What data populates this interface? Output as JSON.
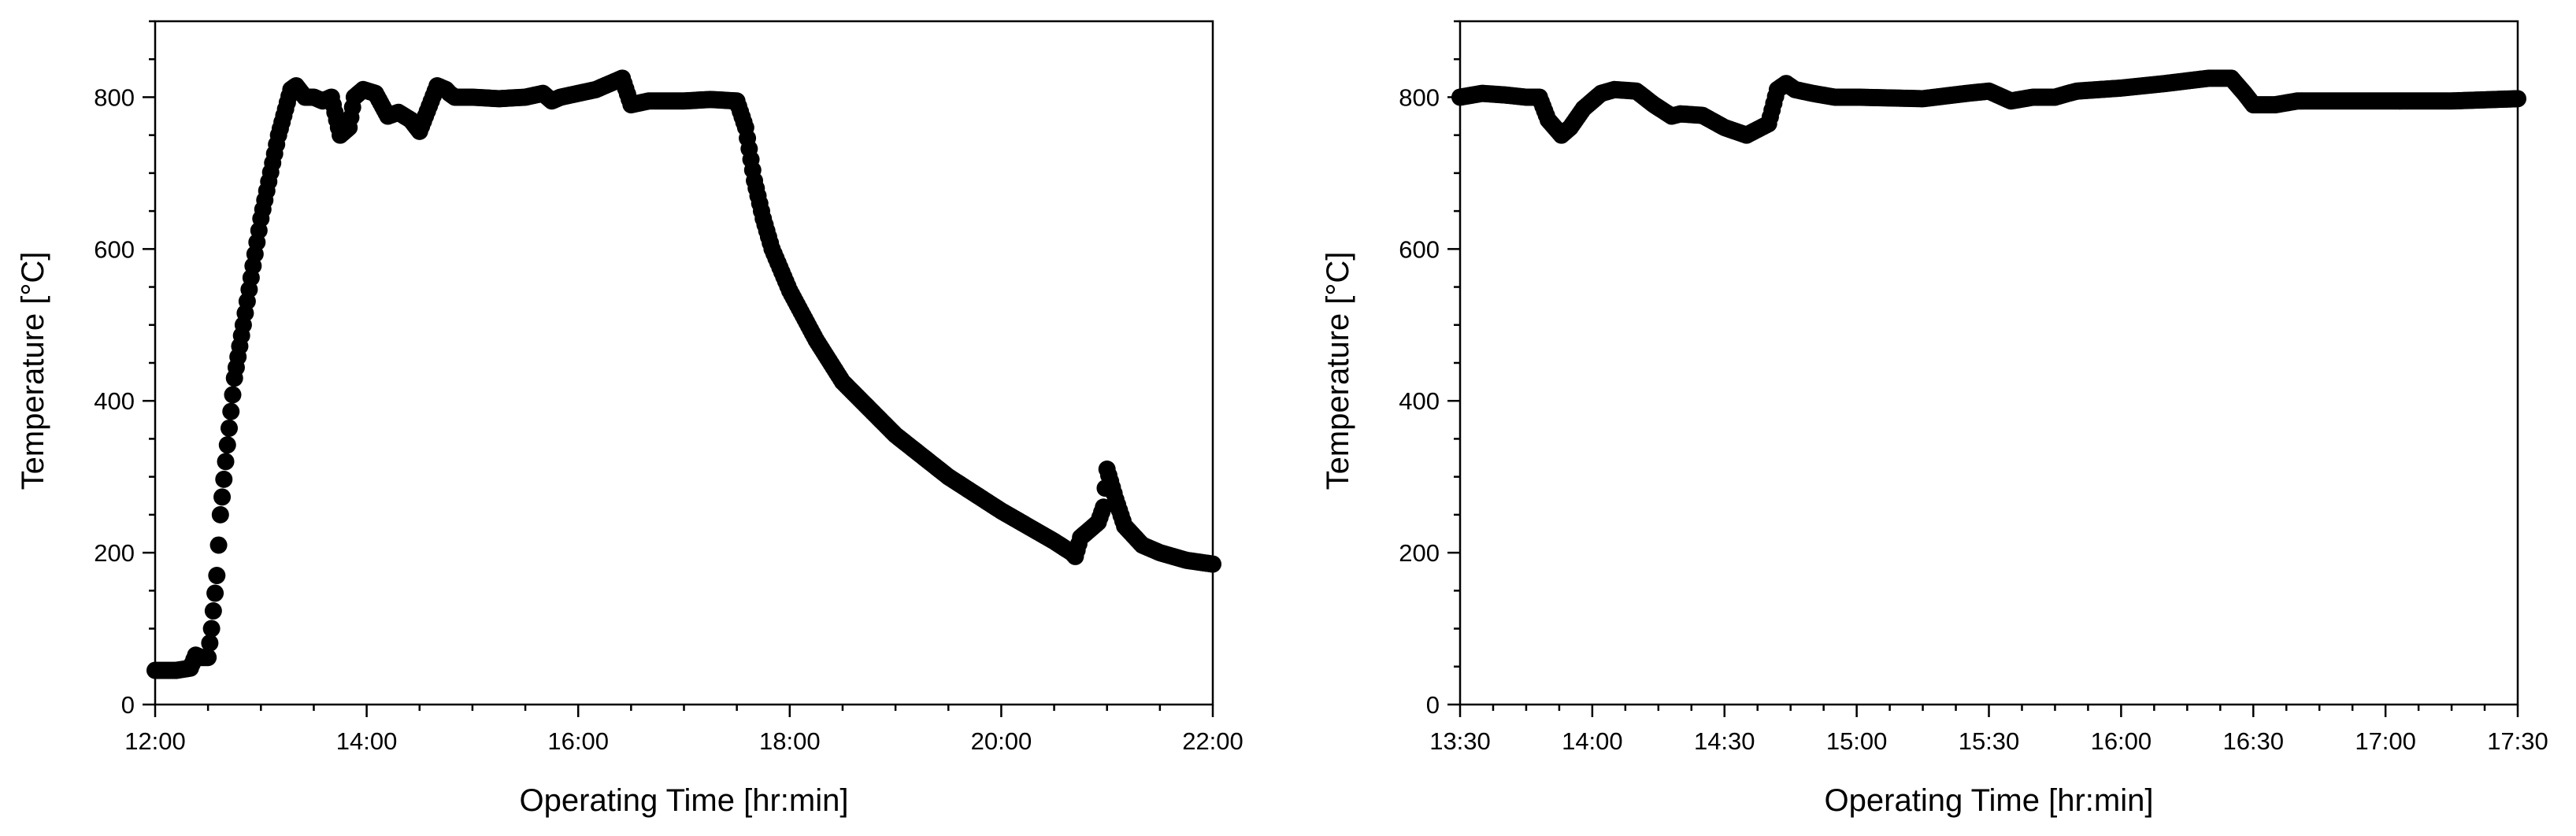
{
  "chart_data": [
    {
      "type": "scatter",
      "title": "",
      "xlabel": "Operating Time [hr:min]",
      "ylabel": "Temperature [°C]",
      "x_unit": "hr:min",
      "xlim": [
        "12:00",
        "22:00"
      ],
      "ylim": [
        0,
        900
      ],
      "x_ticks": [
        "12:00",
        "14:00",
        "16:00",
        "18:00",
        "20:00",
        "22:00"
      ],
      "y_ticks": [
        0,
        200,
        400,
        600,
        800
      ],
      "grid": false,
      "legend": "none",
      "marker_color": "#000000",
      "series": [
        {
          "x": [
            "12:00",
            "12:12",
            "12:20",
            "12:23",
            "12:26",
            "12:30",
            "12:32",
            "12:35",
            "12:37",
            "12:40",
            "12:45",
            "12:50",
            "13:00",
            "13:10",
            "13:17",
            "13:20",
            "13:25",
            "13:30",
            "13:35",
            "13:40",
            "13:45",
            "13:50",
            "13:53",
            "13:58",
            "14:05",
            "14:12",
            "14:18",
            "14:25",
            "14:30",
            "14:40",
            "14:45",
            "14:47",
            "14:50",
            "15:00",
            "15:15",
            "15:30",
            "15:40",
            "15:45",
            "15:50",
            "16:00",
            "16:10",
            "16:20",
            "16:25",
            "16:30",
            "16:40",
            "16:50",
            "17:00",
            "17:15",
            "17:30",
            "17:35",
            "17:40",
            "17:45",
            "17:50",
            "18:00",
            "18:15",
            "18:30",
            "19:00",
            "19:30",
            "20:00",
            "20:30",
            "20:40",
            "20:42",
            "20:45",
            "20:50",
            "20:55",
            "20:58",
            "21:00",
            "21:05",
            "21:10",
            "21:20",
            "21:30",
            "21:45",
            "22:00"
          ],
          "y": [
            45,
            45,
            48,
            65,
            62,
            62,
            100,
            170,
            250,
            320,
            430,
            500,
            640,
            750,
            810,
            815,
            800,
            800,
            795,
            800,
            750,
            760,
            800,
            810,
            805,
            775,
            780,
            770,
            755,
            815,
            810,
            805,
            800,
            800,
            798,
            800,
            805,
            795,
            800,
            805,
            810,
            820,
            825,
            790,
            795,
            795,
            795,
            797,
            795,
            760,
            690,
            640,
            600,
            545,
            480,
            425,
            355,
            300,
            255,
            215,
            200,
            195,
            220,
            230,
            240,
            260,
            310,
            270,
            235,
            210,
            200,
            190,
            185
          ]
        }
      ]
    },
    {
      "type": "scatter",
      "title": "",
      "xlabel": "Operating Time [hr:min]",
      "ylabel": "Temperature [°C]",
      "x_unit": "hr:min",
      "xlim": [
        "13:30",
        "17:30"
      ],
      "ylim": [
        0,
        900
      ],
      "x_ticks": [
        "13:30",
        "14:00",
        "14:30",
        "15:00",
        "15:30",
        "16:00",
        "16:30",
        "17:00",
        "17:30"
      ],
      "y_ticks": [
        0,
        200,
        400,
        600,
        800
      ],
      "grid": false,
      "legend": "none",
      "marker_color": "#000000",
      "series": [
        {
          "x": [
            "13:30",
            "13:35",
            "13:40",
            "13:45",
            "13:48",
            "13:50",
            "13:53",
            "13:55",
            "13:58",
            "14:02",
            "14:05",
            "14:10",
            "14:14",
            "14:18",
            "14:20",
            "14:25",
            "14:30",
            "14:35",
            "14:40",
            "14:42",
            "14:44",
            "14:46",
            "14:50",
            "14:55",
            "15:00",
            "15:15",
            "15:25",
            "15:30",
            "15:35",
            "15:40",
            "15:45",
            "15:48",
            "15:50",
            "15:55",
            "16:00",
            "16:10",
            "16:20",
            "16:25",
            "16:28",
            "16:30",
            "16:35",
            "16:40",
            "16:50",
            "17:00",
            "17:15",
            "17:25",
            "17:30"
          ],
          "y": [
            800,
            805,
            803,
            800,
            800,
            770,
            750,
            760,
            785,
            805,
            810,
            808,
            790,
            775,
            778,
            776,
            760,
            750,
            765,
            810,
            818,
            810,
            805,
            800,
            800,
            798,
            805,
            808,
            795,
            800,
            800,
            805,
            808,
            810,
            812,
            818,
            825,
            825,
            805,
            790,
            790,
            795,
            795,
            795,
            795,
            797,
            798
          ]
        }
      ]
    }
  ]
}
